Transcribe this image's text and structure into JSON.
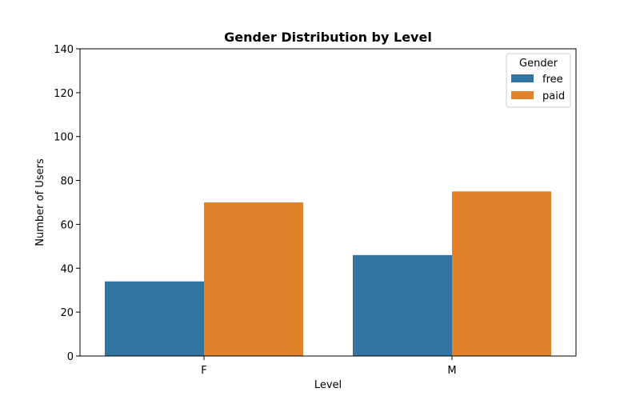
{
  "chart_data": {
    "type": "bar",
    "title": "Gender Distribution by Level",
    "xlabel": "Level",
    "ylabel": "Number of Users",
    "categories": [
      "F",
      "M"
    ],
    "series": [
      {
        "name": "free",
        "values": [
          34,
          46
        ],
        "color": "#3274a1"
      },
      {
        "name": "paid",
        "values": [
          70,
          75
        ],
        "color": "#e1812c"
      }
    ],
    "ylim": [
      0,
      140
    ],
    "yticks": [
      0,
      20,
      40,
      60,
      80,
      100,
      120,
      140
    ],
    "legend": {
      "title": "Gender",
      "placement": "top-right"
    },
    "grid": false
  }
}
